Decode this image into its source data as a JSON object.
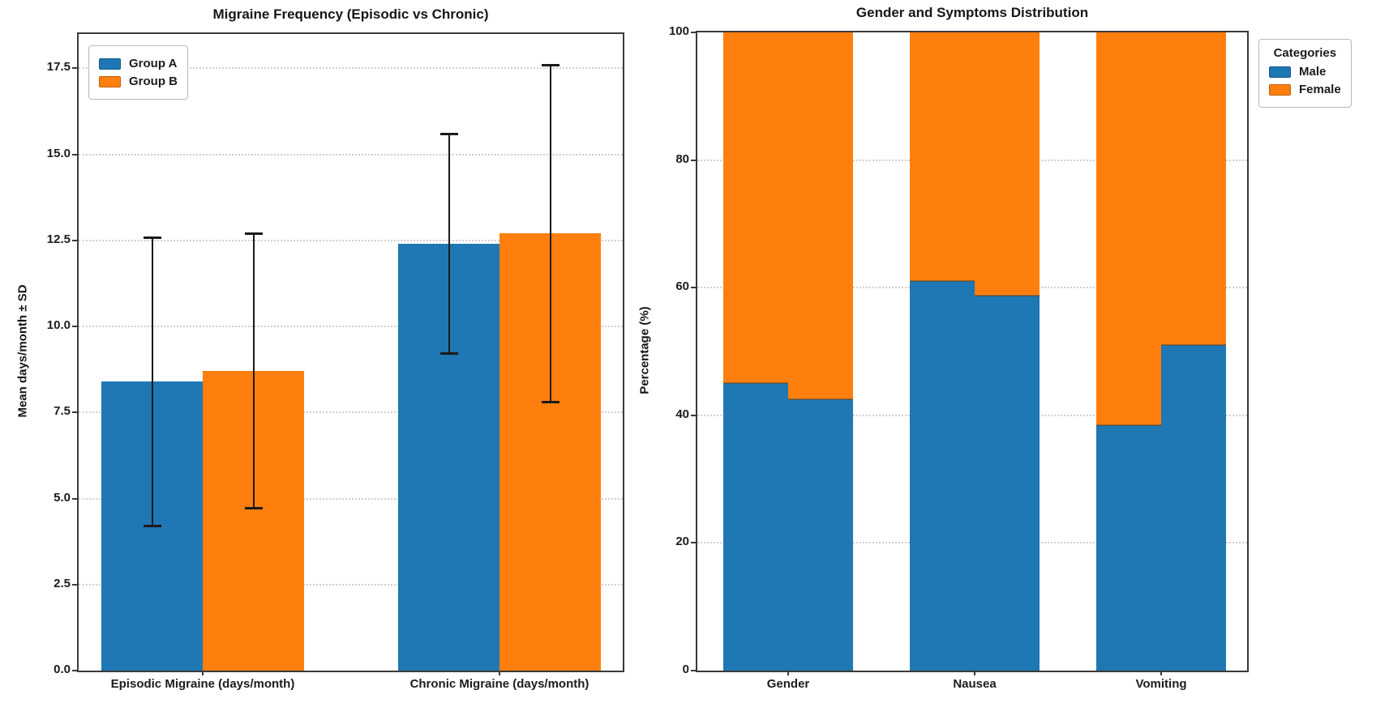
{
  "colors": {
    "group_a_blue": "#1f77b4",
    "group_b_orange": "#ff7f0e",
    "error_bar": "#1a1a1a",
    "gridline": "#cfcfcf",
    "spine": "#3a3a3a"
  },
  "chart_data": [
    {
      "type": "bar",
      "title": "Migraine Frequency (Episodic vs Chronic)",
      "ylabel": "Mean days/month ± SD",
      "xlabel": "",
      "ylim": [
        0,
        18.5
      ],
      "grid": "horizontal-dotted",
      "yticks": [
        "0.0",
        "2.5",
        "5.0",
        "7.5",
        "10.0",
        "12.5",
        "15.0",
        "17.5"
      ],
      "ytick_values": [
        0,
        2.5,
        5,
        7.5,
        10,
        12.5,
        15,
        17.5
      ],
      "categories": [
        "Episodic Migraine (days/month)",
        "Chronic Migraine (days/month)"
      ],
      "legend": {
        "position": "upper-left",
        "entries": [
          {
            "label": "Group A",
            "color": "#1f77b4"
          },
          {
            "label": "Group B",
            "color": "#ff7f0e"
          }
        ]
      },
      "series": [
        {
          "name": "Group A",
          "color": "#1f77b4",
          "values": [
            8.4,
            12.4
          ],
          "errors": [
            4.2,
            3.2
          ]
        },
        {
          "name": "Group B",
          "color": "#ff7f0e",
          "values": [
            8.7,
            12.7
          ],
          "errors": [
            4.0,
            4.9
          ]
        }
      ]
    },
    {
      "type": "stacked-bar",
      "title": "Gender and Symptoms Distribution",
      "ylabel": "Percentage (%)",
      "xlabel": "",
      "ylim": [
        0,
        100
      ],
      "grid": "horizontal-dotted",
      "yticks": [
        "0",
        "20",
        "40",
        "60",
        "80",
        "100"
      ],
      "ytick_values": [
        0,
        20,
        40,
        60,
        80,
        100
      ],
      "categories": [
        "Gender",
        "Nausea",
        "Vomiting"
      ],
      "note": "each category shows two adjacent stacked bars (Male bottom, Female top), both summing to 100%",
      "legend": {
        "title": "Categories",
        "position": "outside-right",
        "entries": [
          {
            "label": "Male",
            "color": "#1f77b4"
          },
          {
            "label": "Female",
            "color": "#ff7f0e"
          }
        ]
      },
      "series": [
        {
          "name": "Male",
          "color": "#1f77b4",
          "values_pairs": [
            [
              45,
              42.5
            ],
            [
              61,
              58.7
            ],
            [
              38.5,
              51
            ]
          ]
        },
        {
          "name": "Female",
          "color": "#ff7f0e",
          "values_pairs": [
            [
              55,
              57.5
            ],
            [
              39,
              41.3
            ],
            [
              61.5,
              49
            ]
          ]
        }
      ]
    }
  ]
}
